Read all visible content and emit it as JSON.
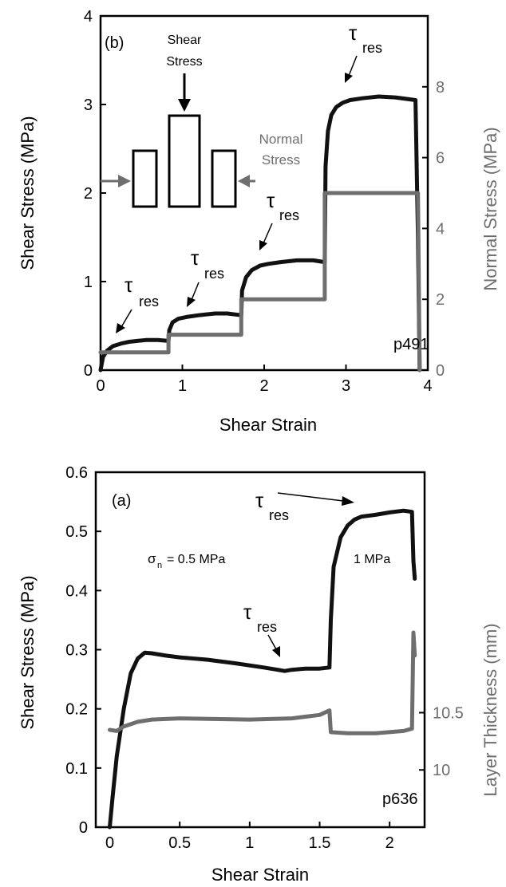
{
  "chart_data": [
    {
      "panel": "top",
      "type": "line",
      "panel_label": "(b)",
      "sample_label": "p491",
      "xlabel": "Shear Strain",
      "ylabel": "Shear Stress (MPa)",
      "y2label": "Normal Stress (MPa)",
      "xlim": [
        0,
        4
      ],
      "ylim": [
        0,
        4
      ],
      "y2lim": [
        0,
        10
      ],
      "xticks": [
        "0",
        "1",
        "2",
        "3",
        "4"
      ],
      "yticks": [
        "0",
        "1",
        "2",
        "3",
        "4"
      ],
      "y2ticks": [
        "0",
        "2",
        "4",
        "6",
        "8"
      ],
      "colors": {
        "shear": "#111111",
        "normal": "#6e6e6e",
        "axis": "#000000",
        "right_axis": "#6e6e6e"
      },
      "inset": {
        "shear_label_1": "Shear",
        "shear_label_2": "Stress",
        "normal_label_1": "Normal",
        "normal_label_2": "Stress"
      },
      "annotations": [
        {
          "symbol": "τ",
          "subscript": "res",
          "target_x": 0.2,
          "target_y": 0.3
        },
        {
          "symbol": "τ",
          "subscript": "res",
          "target_x": 1.0,
          "target_y": 0.62
        },
        {
          "symbol": "τ",
          "subscript": "res",
          "target_x": 1.92,
          "target_y": 1.22
        },
        {
          "symbol": "τ",
          "subscript": "res",
          "target_x": 2.95,
          "target_y": 3.05
        }
      ],
      "series": [
        {
          "axis": "left",
          "x": [
            0,
            0.03,
            0.08,
            0.15,
            0.25,
            0.35,
            0.45,
            0.55,
            0.7,
            0.83,
            0.84,
            0.88,
            0.95,
            1.05,
            1.2,
            1.4,
            1.55,
            1.72,
            1.73,
            1.78,
            1.85,
            1.95,
            2.05,
            2.2,
            2.4,
            2.6,
            2.74,
            2.75,
            2.78,
            2.82,
            2.88,
            2.96,
            3.05,
            3.2,
            3.4,
            3.6,
            3.85,
            3.88,
            3.9
          ],
          "y": [
            0,
            0.15,
            0.22,
            0.27,
            0.3,
            0.32,
            0.33,
            0.34,
            0.34,
            0.33,
            0.45,
            0.54,
            0.58,
            0.6,
            0.62,
            0.64,
            0.64,
            0.62,
            0.9,
            1.05,
            1.13,
            1.18,
            1.2,
            1.22,
            1.24,
            1.24,
            1.22,
            2.3,
            2.7,
            2.88,
            2.97,
            3.02,
            3.05,
            3.07,
            3.09,
            3.08,
            3.05,
            1.5,
            0
          ]
        },
        {
          "axis": "right",
          "x": [
            0,
            0.83,
            0.83,
            1.72,
            1.72,
            2.74,
            2.74,
            3.88,
            3.9
          ],
          "y": [
            0.5,
            0.5,
            1.0,
            1.0,
            2.0,
            2.0,
            5.0,
            5.0,
            0
          ]
        }
      ]
    },
    {
      "panel": "bottom",
      "type": "line",
      "panel_label": "(a)",
      "sample_label": "p636",
      "condition_1_sigma": "σ",
      "condition_1_sub": "n",
      "condition_1_text": "= 0.5 MPa",
      "condition_2_text": "1 MPa",
      "xlabel": "Shear Strain",
      "ylabel": "Shear Stress (MPa)",
      "y2label": "Layer Thickness (mm)",
      "xlim": [
        -0.1,
        2.25
      ],
      "ylim": [
        0,
        0.6
      ],
      "y2lim": [
        9.5,
        12.6
      ],
      "xticks": [
        "0",
        "0.5",
        "1",
        "1.5",
        "2"
      ],
      "yticks": [
        "0",
        "0.1",
        "0.2",
        "0.3",
        "0.4",
        "0.5",
        "0.6"
      ],
      "y2ticks": [
        "10",
        "10.5"
      ],
      "colors": {
        "shear": "#111111",
        "thickness": "#6e6e6e",
        "axis": "#000000",
        "right_axis": "#6e6e6e"
      },
      "annotations": [
        {
          "symbol": "τ",
          "subscript": "res",
          "target_x": 1.3,
          "target_y": 0.268
        },
        {
          "symbol": "τ",
          "subscript": "res",
          "target_x": 1.8,
          "target_y": 0.525
        }
      ],
      "series": [
        {
          "axis": "left",
          "x": [
            0,
            0.02,
            0.05,
            0.1,
            0.15,
            0.2,
            0.25,
            0.3,
            0.4,
            0.5,
            0.7,
            0.9,
            1.1,
            1.2,
            1.25,
            1.3,
            1.4,
            1.5,
            1.57,
            1.58,
            1.6,
            1.65,
            1.7,
            1.75,
            1.8,
            1.9,
            2.0,
            2.1,
            2.16,
            2.17,
            2.18
          ],
          "y": [
            0,
            0.05,
            0.12,
            0.2,
            0.26,
            0.285,
            0.295,
            0.294,
            0.29,
            0.287,
            0.283,
            0.277,
            0.27,
            0.266,
            0.264,
            0.266,
            0.268,
            0.268,
            0.27,
            0.35,
            0.44,
            0.49,
            0.51,
            0.52,
            0.525,
            0.528,
            0.532,
            0.535,
            0.533,
            0.45,
            0.42
          ]
        },
        {
          "axis": "right",
          "x": [
            0,
            0.05,
            0.1,
            0.2,
            0.3,
            0.5,
            1.0,
            1.3,
            1.5,
            1.57,
            1.58,
            1.7,
            1.9,
            2.1,
            2.16,
            2.17,
            2.18
          ],
          "y": [
            10.35,
            10.34,
            10.38,
            10.42,
            10.44,
            10.45,
            10.44,
            10.45,
            10.48,
            10.52,
            10.33,
            10.32,
            10.32,
            10.34,
            10.36,
            11.2,
            11.0
          ]
        }
      ]
    }
  ]
}
